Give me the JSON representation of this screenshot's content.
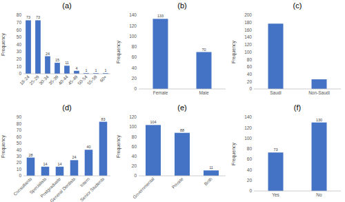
{
  "chart_data": [
    {
      "type": "bar",
      "title": "(a)",
      "y_label": "Frequency",
      "categories": [
        "18-24",
        "25-29",
        "30-34",
        "35-39",
        "40-44",
        "45-49",
        "50-54",
        "55-59",
        "60+"
      ],
      "values": [
        73,
        73,
        24,
        15,
        11,
        4,
        1,
        1,
        1
      ],
      "color": "#4472c4",
      "ylim": [
        0,
        80
      ],
      "yticks": [
        0,
        10,
        20,
        30,
        40,
        50,
        60,
        70,
        80
      ],
      "grid": false,
      "data_labels": true
    },
    {
      "type": "bar",
      "title": "(b)",
      "y_label": "Frequency",
      "categories": [
        "Female",
        "Male"
      ],
      "values": [
        133,
        70
      ],
      "color": "#4472c4",
      "ylim": [
        0,
        140
      ],
      "yticks": [
        0,
        20,
        40,
        60,
        80,
        100,
        120,
        140
      ],
      "grid": false,
      "data_labels": true
    },
    {
      "type": "bar",
      "title": "(c)",
      "y_label": "Frequency",
      "categories": [
        "Saudi",
        "Non-Saudi"
      ],
      "values": [
        177,
        26
      ],
      "color": "#4472c4",
      "ylim": [
        0,
        200
      ],
      "yticks": [
        0,
        20,
        40,
        60,
        80,
        100,
        120,
        140,
        160,
        180,
        200
      ],
      "grid": false,
      "data_labels": false
    },
    {
      "type": "bar",
      "title": "(d)",
      "y_label": "Frequency",
      "categories": [
        "Consultants",
        "Specialists",
        "Postgraduate",
        "General Dentists",
        "Intern",
        "Senior Students"
      ],
      "values": [
        28,
        14,
        14,
        24,
        40,
        83
      ],
      "color": "#4472c4",
      "ylim": [
        0,
        90
      ],
      "yticks": [
        0,
        10,
        20,
        30,
        40,
        50,
        60,
        70,
        80,
        90
      ],
      "grid": false,
      "data_labels": true
    },
    {
      "type": "bar",
      "title": "(e)",
      "y_label": "Frequency",
      "categories": [
        "Governmental",
        "Private",
        "Both"
      ],
      "values": [
        104,
        88,
        11
      ],
      "color": "#4472c4",
      "ylim": [
        0,
        120
      ],
      "yticks": [
        0,
        20,
        40,
        60,
        80,
        100,
        120
      ],
      "grid": false,
      "data_labels": true
    },
    {
      "type": "bar",
      "title": "(f)",
      "y_label": "Frequency",
      "categories": [
        "Yes",
        "No"
      ],
      "values": [
        73,
        130
      ],
      "color": "#4472c4",
      "ylim": [
        0,
        140
      ],
      "yticks": [
        0,
        20,
        40,
        60,
        80,
        100,
        120,
        140
      ],
      "grid": false,
      "data_labels": true
    }
  ]
}
